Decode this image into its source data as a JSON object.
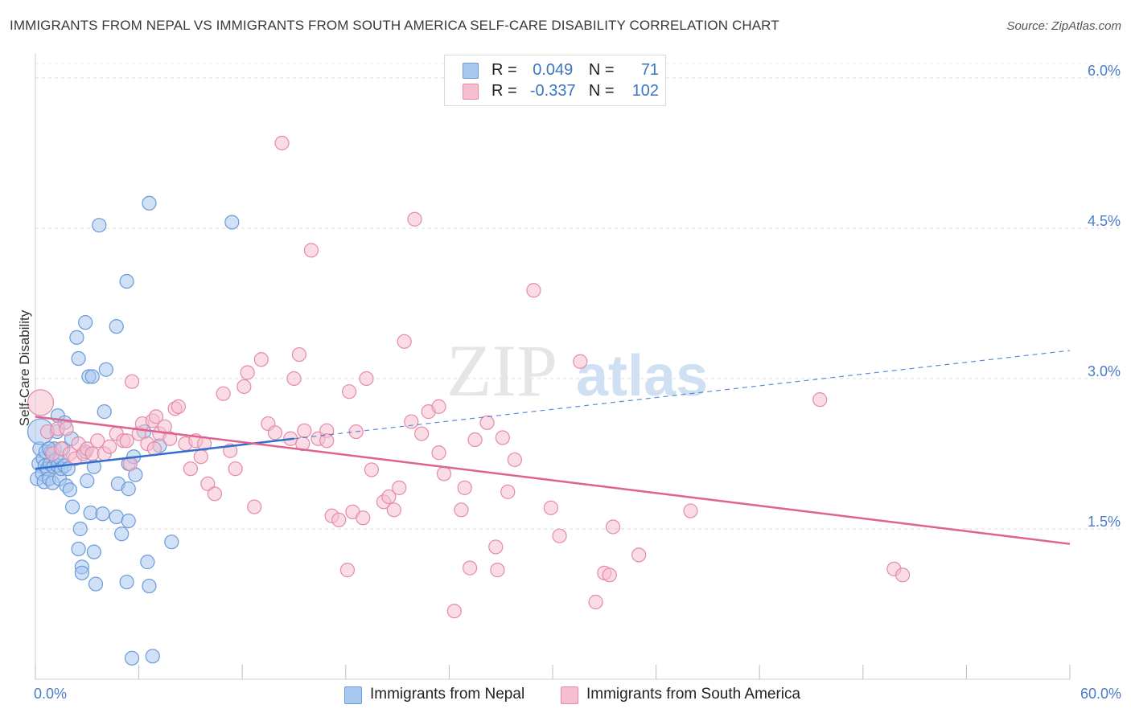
{
  "title": "IMMIGRANTS FROM NEPAL VS IMMIGRANTS FROM SOUTH AMERICA SELF-CARE DISABILITY CORRELATION CHART",
  "source": "Source: ZipAtlas.com",
  "watermark": {
    "zip": "ZIP",
    "atlas": "atlas"
  },
  "stats": [
    {
      "r_label": "R =",
      "r_value": "0.049",
      "n_label": "N =",
      "n_value": "71",
      "color": "#a9c8f0",
      "border": "#6b9ad8"
    },
    {
      "r_label": "R =",
      "r_value": "-0.337",
      "n_label": "N =",
      "n_value": "102",
      "color": "#f6bfd0",
      "border": "#e58aa8"
    }
  ],
  "legend": [
    {
      "label": "Immigrants from Nepal",
      "color": "#a9c8f0",
      "border": "#6b9ad8"
    },
    {
      "label": "Immigrants from South America",
      "color": "#f6bfd0",
      "border": "#e58aa8"
    }
  ],
  "chart_data": {
    "type": "scatter",
    "title": "IMMIGRANTS FROM NEPAL VS IMMIGRANTS FROM SOUTH AMERICA SELF-CARE DISABILITY CORRELATION CHART",
    "xlabel": "",
    "ylabel": "Self-Care Disability",
    "xlim": [
      0,
      60
    ],
    "ylim": [
      0,
      6.2
    ],
    "x_tick_labels": [
      "0.0%",
      "60.0%"
    ],
    "y_ticks": [
      {
        "value": 1.5,
        "label": "1.5%"
      },
      {
        "value": 3.0,
        "label": "3.0%"
      },
      {
        "value": 4.5,
        "label": "4.5%"
      },
      {
        "value": 6.0,
        "label": "6.0%"
      }
    ],
    "grid": true,
    "legend_position": "bottom-center",
    "series": [
      {
        "name": "Immigrants from Nepal",
        "color": "#6b9ad8",
        "fill": "#a9c8f0",
        "trend": {
          "x0": 0,
          "y0": 2.1,
          "x1": 15,
          "y1": 2.4,
          "dash_x1": 60,
          "dash_y1": 3.28,
          "color": "#2f6fd0"
        },
        "points": [
          [
            0.1,
            2.0
          ],
          [
            0.2,
            2.15
          ],
          [
            0.25,
            2.3
          ],
          [
            0.3,
            2.47
          ],
          [
            0.4,
            2.05
          ],
          [
            0.45,
            2.2
          ],
          [
            0.5,
            1.97
          ],
          [
            0.55,
            2.13
          ],
          [
            0.6,
            2.27
          ],
          [
            0.7,
            2.1
          ],
          [
            0.8,
            2.0
          ],
          [
            0.85,
            2.15
          ],
          [
            0.9,
            2.27
          ],
          [
            1.0,
            1.96
          ],
          [
            1.05,
            2.12
          ],
          [
            1.1,
            2.3
          ],
          [
            1.2,
            2.2
          ],
          [
            1.25,
            2.47
          ],
          [
            1.3,
            2.63
          ],
          [
            1.3,
            2.13
          ],
          [
            1.4,
            2.0
          ],
          [
            1.45,
            2.2
          ],
          [
            1.5,
            2.1
          ],
          [
            1.6,
            2.3
          ],
          [
            1.7,
            2.13
          ],
          [
            1.8,
            1.93
          ],
          [
            1.9,
            2.1
          ],
          [
            2.0,
            1.89
          ],
          [
            2.1,
            2.4
          ],
          [
            1.7,
            2.56
          ],
          [
            0.8,
            2.3
          ],
          [
            2.15,
            1.72
          ],
          [
            2.4,
            3.41
          ],
          [
            2.5,
            3.2
          ],
          [
            2.5,
            1.3
          ],
          [
            2.6,
            1.5
          ],
          [
            2.7,
            1.12
          ],
          [
            2.7,
            1.06
          ],
          [
            2.9,
            3.56
          ],
          [
            2.9,
            2.27
          ],
          [
            3.0,
            1.98
          ],
          [
            3.1,
            3.02
          ],
          [
            3.2,
            1.66
          ],
          [
            3.3,
            3.02
          ],
          [
            3.4,
            2.12
          ],
          [
            3.4,
            1.27
          ],
          [
            3.5,
            0.95
          ],
          [
            3.7,
            4.53
          ],
          [
            3.9,
            1.65
          ],
          [
            4.0,
            2.67
          ],
          [
            4.1,
            3.09
          ],
          [
            4.7,
            1.62
          ],
          [
            4.7,
            3.52
          ],
          [
            4.8,
            1.95
          ],
          [
            5.0,
            1.45
          ],
          [
            5.3,
            3.97
          ],
          [
            5.4,
            1.9
          ],
          [
            5.4,
            1.58
          ],
          [
            5.6,
            0.21
          ],
          [
            5.3,
            0.97
          ],
          [
            5.4,
            2.15
          ],
          [
            5.7,
            2.22
          ],
          [
            5.8,
            2.04
          ],
          [
            6.3,
            2.47
          ],
          [
            6.6,
            4.75
          ],
          [
            6.5,
            1.17
          ],
          [
            6.6,
            0.93
          ],
          [
            6.8,
            0.23
          ],
          [
            7.2,
            2.33
          ],
          [
            7.9,
            1.37
          ],
          [
            11.4,
            4.56
          ]
        ]
      },
      {
        "name": "Immigrants from South America",
        "color": "#e58aa8",
        "fill": "#f6bfd0",
        "trend": {
          "x0": 0,
          "y0": 2.62,
          "x1": 60,
          "y1": 1.35,
          "color": "#e0628e"
        },
        "points": [
          [
            0.3,
            2.76
          ],
          [
            0.7,
            2.47
          ],
          [
            1.0,
            2.25
          ],
          [
            1.3,
            2.5
          ],
          [
            1.5,
            2.3
          ],
          [
            1.8,
            2.5
          ],
          [
            2.0,
            2.25
          ],
          [
            2.3,
            2.2
          ],
          [
            2.5,
            2.35
          ],
          [
            2.8,
            2.25
          ],
          [
            3.0,
            2.3
          ],
          [
            3.3,
            2.25
          ],
          [
            3.6,
            2.38
          ],
          [
            4.0,
            2.25
          ],
          [
            4.3,
            2.32
          ],
          [
            4.7,
            2.45
          ],
          [
            5.1,
            2.38
          ],
          [
            5.3,
            2.38
          ],
          [
            5.6,
            2.97
          ],
          [
            6.0,
            2.45
          ],
          [
            6.2,
            2.55
          ],
          [
            6.5,
            2.35
          ],
          [
            6.8,
            2.58
          ],
          [
            7.0,
            2.62
          ],
          [
            7.2,
            2.45
          ],
          [
            7.5,
            2.52
          ],
          [
            7.8,
            2.4
          ],
          [
            8.1,
            2.7
          ],
          [
            8.3,
            2.72
          ],
          [
            8.7,
            2.35
          ],
          [
            9.0,
            2.1
          ],
          [
            9.3,
            2.38
          ],
          [
            9.6,
            2.22
          ],
          [
            10.0,
            1.95
          ],
          [
            10.4,
            1.85
          ],
          [
            10.9,
            2.85
          ],
          [
            11.3,
            2.28
          ],
          [
            11.6,
            2.1
          ],
          [
            12.1,
            2.92
          ],
          [
            12.3,
            3.06
          ],
          [
            12.7,
            1.72
          ],
          [
            13.1,
            3.19
          ],
          [
            13.5,
            2.55
          ],
          [
            13.9,
            2.46
          ],
          [
            14.3,
            5.35
          ],
          [
            14.8,
            2.4
          ],
          [
            15.0,
            3.0
          ],
          [
            15.3,
            3.24
          ],
          [
            15.6,
            2.48
          ],
          [
            16.0,
            4.28
          ],
          [
            16.4,
            2.4
          ],
          [
            16.9,
            2.48
          ],
          [
            16.9,
            2.38
          ],
          [
            17.2,
            1.63
          ],
          [
            17.6,
            1.59
          ],
          [
            18.1,
            1.09
          ],
          [
            18.2,
            2.87
          ],
          [
            18.4,
            1.67
          ],
          [
            18.6,
            2.47
          ],
          [
            19.0,
            1.61
          ],
          [
            19.2,
            3.0
          ],
          [
            19.5,
            2.09
          ],
          [
            20.2,
            1.77
          ],
          [
            20.5,
            1.82
          ],
          [
            20.8,
            1.69
          ],
          [
            21.1,
            1.91
          ],
          [
            21.4,
            3.37
          ],
          [
            21.8,
            2.57
          ],
          [
            22.0,
            4.59
          ],
          [
            22.4,
            2.45
          ],
          [
            22.8,
            2.67
          ],
          [
            23.4,
            2.26
          ],
          [
            23.4,
            2.72
          ],
          [
            23.7,
            2.05
          ],
          [
            24.3,
            0.68
          ],
          [
            24.7,
            1.69
          ],
          [
            24.9,
            1.91
          ],
          [
            25.2,
            1.11
          ],
          [
            25.5,
            2.39
          ],
          [
            26.2,
            2.56
          ],
          [
            26.7,
            1.32
          ],
          [
            26.8,
            1.09
          ],
          [
            27.1,
            2.41
          ],
          [
            27.4,
            1.87
          ],
          [
            27.8,
            2.19
          ],
          [
            28.9,
            3.88
          ],
          [
            29.9,
            1.71
          ],
          [
            30.4,
            1.43
          ],
          [
            31.6,
            3.17
          ],
          [
            32.5,
            0.77
          ],
          [
            33.0,
            1.06
          ],
          [
            33.3,
            1.04
          ],
          [
            33.5,
            1.52
          ],
          [
            35.0,
            1.24
          ],
          [
            38.0,
            1.68
          ],
          [
            45.5,
            2.79
          ],
          [
            49.8,
            1.1
          ],
          [
            50.3,
            1.04
          ],
          [
            5.5,
            2.15
          ],
          [
            9.8,
            2.35
          ],
          [
            15.5,
            2.35
          ],
          [
            6.9,
            2.3
          ]
        ]
      }
    ]
  }
}
